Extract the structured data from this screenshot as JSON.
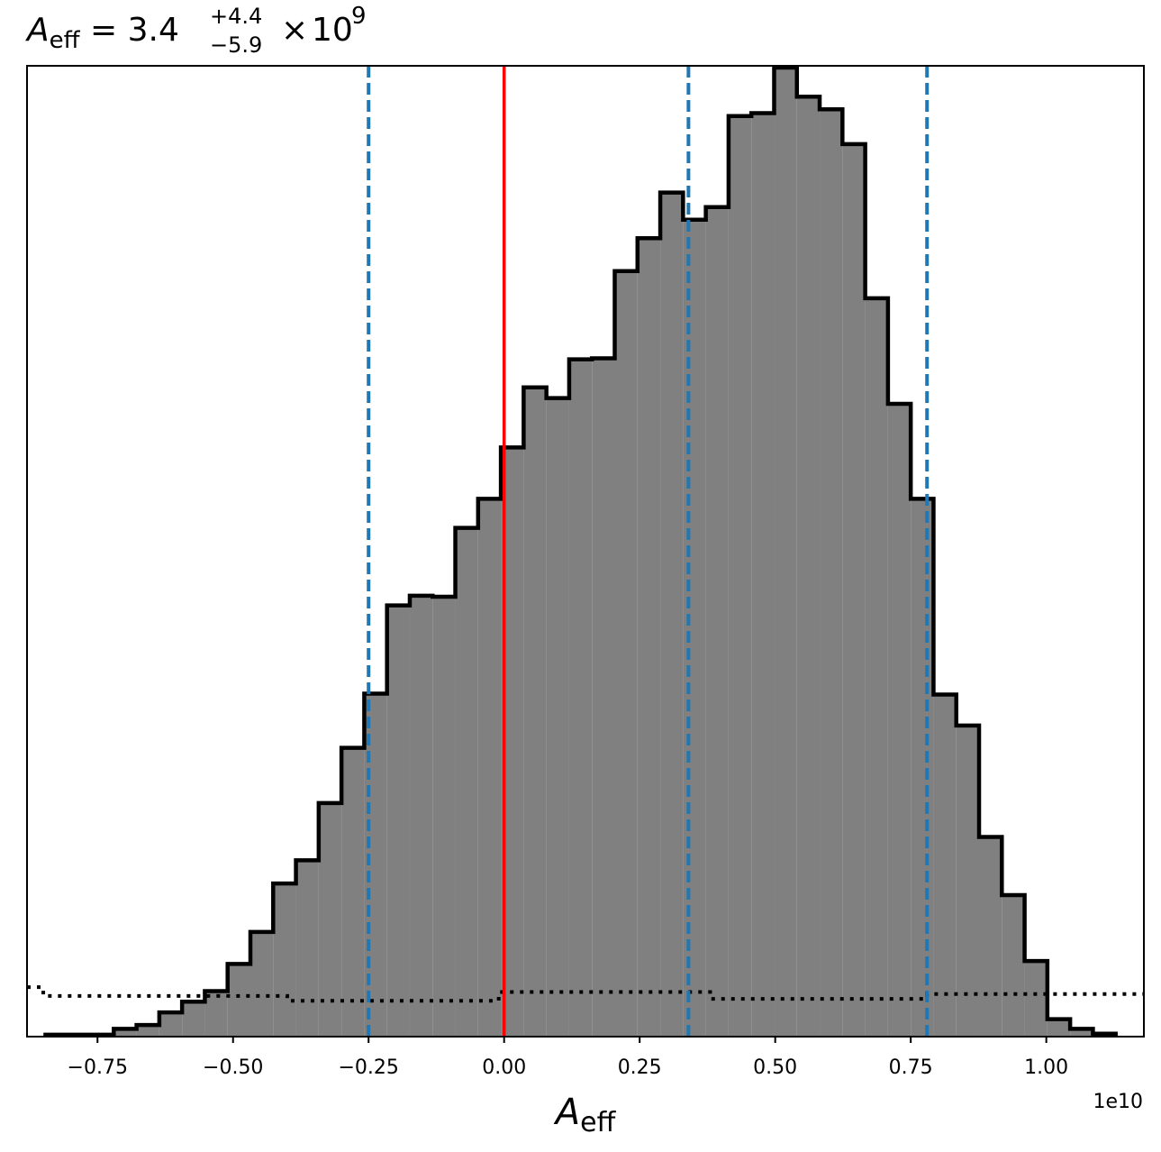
{
  "title": {
    "symbol": "A",
    "symbol_sub": "eff",
    "equals": "=",
    "median": "3.4",
    "upper": "+4.4",
    "lower": "−5.9",
    "times": "×",
    "base": "10",
    "exponent": "9"
  },
  "xaxis": {
    "label_symbol": "A",
    "label_sub": "eff",
    "offset_text": "1e10"
  },
  "colors": {
    "hist_fill": "#808080",
    "hist_edge": "#000000",
    "truth_line": "#ff0000",
    "quantile_lines": "#1f77b4",
    "prior": "#000000"
  },
  "chart_data": {
    "type": "histogram",
    "title": "A_eff = 3.4 (+4.4 / −5.9) × 10^9",
    "xlabel": "A_eff",
    "ylabel": "",
    "x_scale_factor": 10000000000.0,
    "xlim": [
      -0.88,
      1.18
    ],
    "ylim": [
      0,
      1.0
    ],
    "xticks": [
      -0.75,
      -0.5,
      -0.25,
      0.0,
      0.25,
      0.5,
      0.75,
      1.0
    ],
    "xtick_labels": [
      "−0.75",
      "−0.50",
      "−0.25",
      "0.00",
      "0.25",
      "0.50",
      "0.75",
      "1.00"
    ],
    "grid": false,
    "legend": "none",
    "bin_edges": [
      -0.846,
      -0.804,
      -0.762,
      -0.72,
      -0.678,
      -0.636,
      -0.594,
      -0.552,
      -0.51,
      -0.468,
      -0.426,
      -0.384,
      -0.342,
      -0.3,
      -0.258,
      -0.216,
      -0.174,
      -0.132,
      -0.09,
      -0.048,
      -0.006,
      0.036,
      0.078,
      0.12,
      0.162,
      0.204,
      0.246,
      0.288,
      0.33,
      0.372,
      0.414,
      0.456,
      0.498,
      0.54,
      0.582,
      0.624,
      0.666,
      0.708,
      0.75,
      0.792,
      0.834,
      0.876,
      0.918,
      0.96,
      1.002,
      1.044,
      1.086,
      1.128
    ],
    "counts": [
      0.002,
      0.002,
      0.002,
      0.008,
      0.012,
      0.025,
      0.036,
      0.047,
      0.075,
      0.108,
      0.158,
      0.182,
      0.241,
      0.298,
      0.354,
      0.445,
      0.455,
      0.454,
      0.525,
      0.555,
      0.608,
      0.67,
      0.659,
      0.699,
      0.7,
      0.79,
      0.824,
      0.871,
      0.843,
      0.856,
      0.95,
      0.953,
      1.0,
      0.97,
      0.957,
      0.921,
      0.762,
      0.653,
      0.555,
      0.353,
      0.321,
      0.206,
      0.146,
      0.078,
      0.018,
      0.008,
      0.003
    ],
    "truth_value": 0.0,
    "quantiles": [
      -0.25,
      0.34,
      0.78
    ],
    "prior": {
      "x": [
        -0.88,
        -0.85,
        -0.85,
        -0.4,
        -0.4,
        -0.01,
        -0.01,
        0.38,
        0.38,
        0.78,
        0.78,
        1.18
      ],
      "y": [
        0.051,
        0.051,
        0.042,
        0.042,
        0.037,
        0.037,
        0.046,
        0.046,
        0.039,
        0.039,
        0.044,
        0.044
      ]
    }
  }
}
